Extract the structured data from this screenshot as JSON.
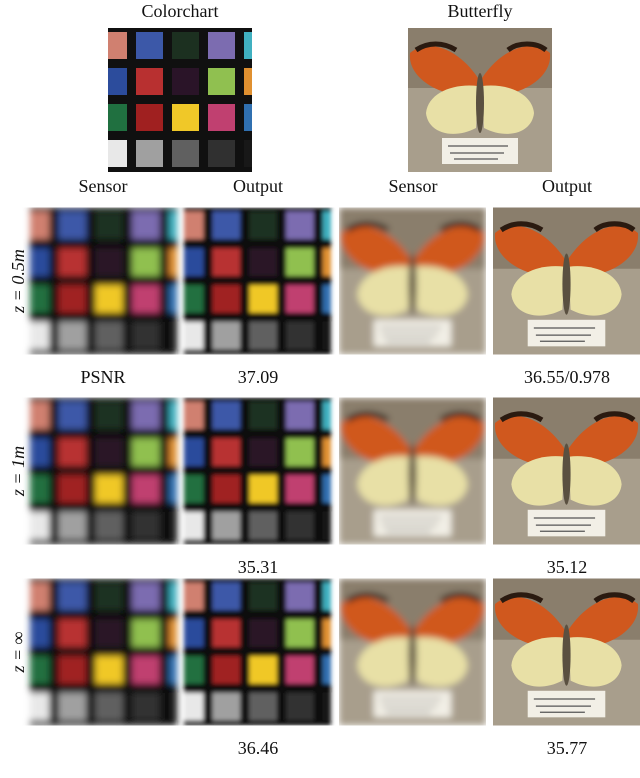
{
  "figure": {
    "columns": {
      "titles": [
        "Colorchart",
        "Butterfly"
      ],
      "subtitles": [
        "Sensor",
        "Output",
        "Sensor",
        "Output"
      ]
    },
    "rows": [
      {
        "label": "z = 0.5m",
        "metric": "PSNR",
        "colorchart_output": 37.09,
        "butterfly_output": "36.55/0.978"
      },
      {
        "label": "z = 1m",
        "colorchart_output": 35.31,
        "butterfly_output": 35.12
      },
      {
        "label": "z = ∞",
        "colorchart_output": 36.46,
        "butterfly_output": 35.77
      }
    ]
  }
}
